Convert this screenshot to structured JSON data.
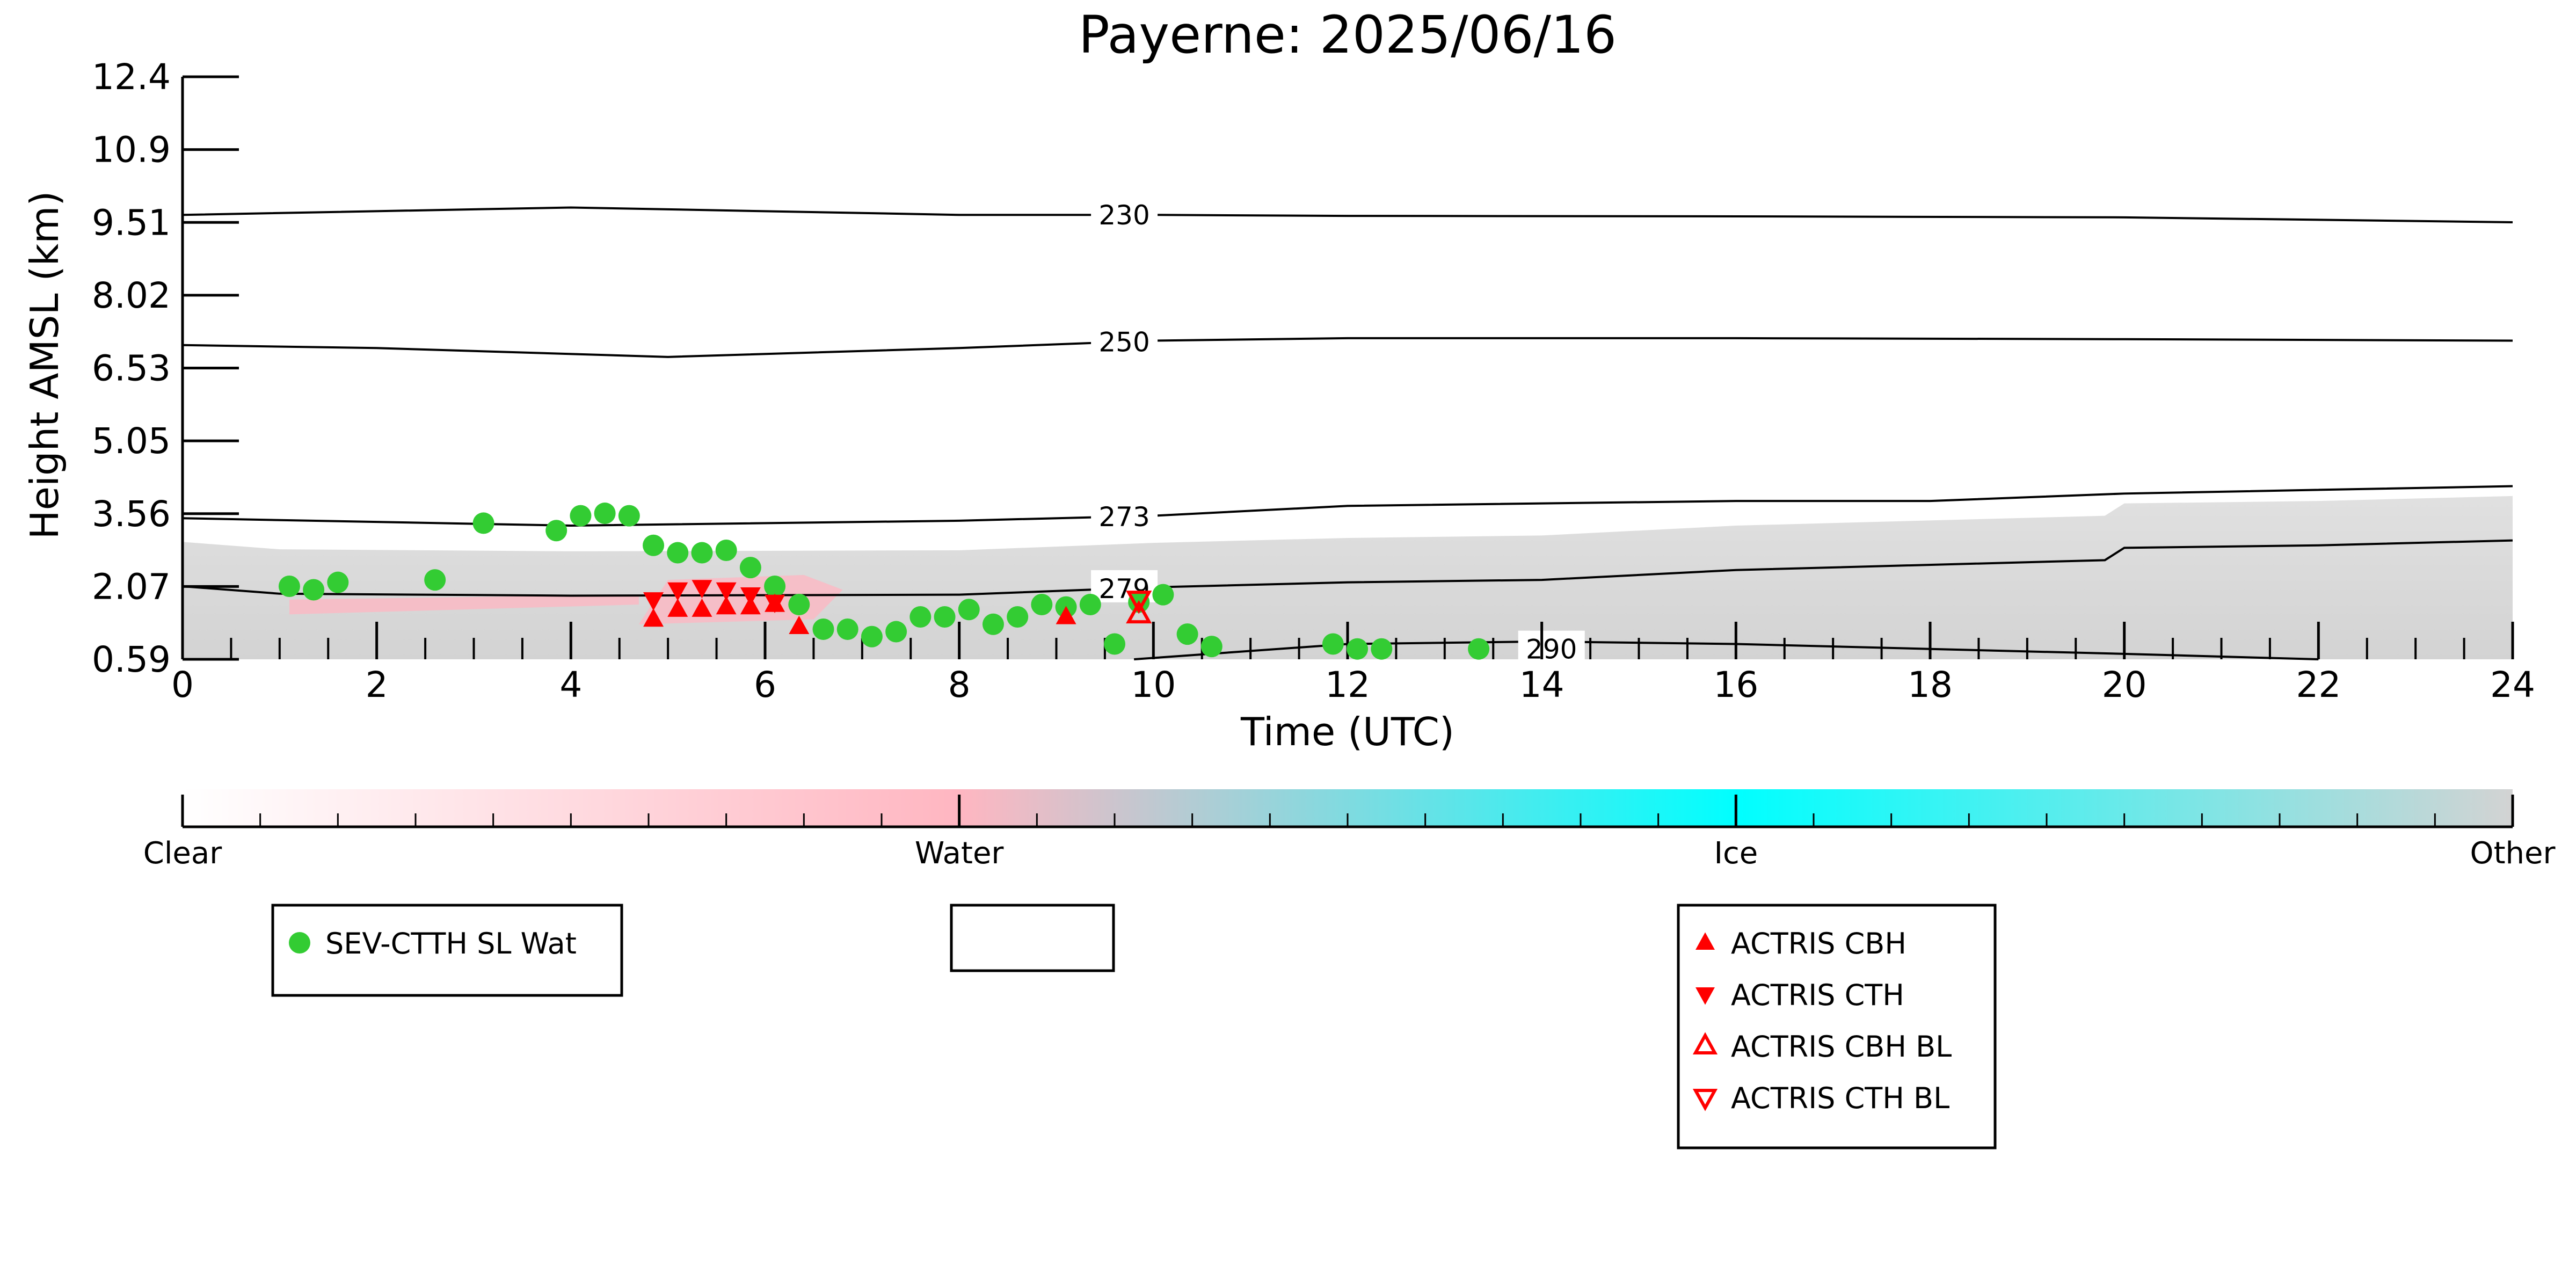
{
  "chart_data": {
    "type": "scatter",
    "title": "Payerne: 2025/06/16",
    "xlabel": "Time (UTC)",
    "ylabel": "Height AMSL (km)",
    "xlim": [
      0,
      24
    ],
    "ylim": [
      0.59,
      12.4
    ],
    "x_ticks": [
      "0",
      "2",
      "4",
      "6",
      "8",
      "10",
      "12",
      "14",
      "16",
      "18",
      "20",
      "22",
      "24"
    ],
    "y_ticks": [
      "0.59",
      "2.07",
      "3.56",
      "5.05",
      "6.53",
      "8.02",
      "9.51",
      "10.9",
      "12.4"
    ],
    "background": "cloud phase mask (Clear / Water / Ice / Other)",
    "colorbar": {
      "labels": [
        "Clear",
        "Water",
        "Ice",
        "Other"
      ],
      "colors": [
        "#ffffff",
        "#ffb6c1",
        "#00ffff",
        "#d3d3d3"
      ]
    },
    "isotherms": [
      {
        "label": "230",
        "x": [
          0,
          4,
          8,
          10,
          12,
          16,
          20,
          24
        ],
        "y": [
          9.6,
          9.75,
          9.6,
          9.6,
          9.58,
          9.57,
          9.55,
          9.45
        ]
      },
      {
        "label": "250",
        "x": [
          0,
          2,
          5,
          8,
          10,
          12,
          16,
          20,
          24
        ],
        "y": [
          6.96,
          6.9,
          6.72,
          6.9,
          7.05,
          7.1,
          7.1,
          7.08,
          7.05
        ]
      },
      {
        "label": "273",
        "x": [
          0,
          4,
          8,
          10,
          12,
          16,
          18,
          20,
          24
        ],
        "y": [
          3.45,
          3.3,
          3.4,
          3.5,
          3.7,
          3.8,
          3.8,
          3.95,
          4.1
        ]
      },
      {
        "label": "279",
        "x": [
          0,
          1,
          4,
          8,
          10,
          12,
          14,
          16,
          19.8,
          20,
          22,
          24
        ],
        "y": [
          2.07,
          1.92,
          1.88,
          1.9,
          2.05,
          2.15,
          2.2,
          2.4,
          2.6,
          2.85,
          2.9,
          3.0
        ]
      },
      {
        "label": "290",
        "x": [
          9.8,
          12,
          14,
          16,
          18,
          20,
          22
        ],
        "y": [
          0.59,
          0.9,
          0.95,
          0.9,
          0.8,
          0.7,
          0.59
        ]
      }
    ],
    "series": [
      {
        "name": "SEV-CTTH SL Wat",
        "color": "#33cc33",
        "marker": "circle",
        "points": [
          [
            1.1,
            2.07
          ],
          [
            1.35,
            2.0
          ],
          [
            1.6,
            2.15
          ],
          [
            2.6,
            2.2
          ],
          [
            3.1,
            3.35
          ],
          [
            3.85,
            3.2
          ],
          [
            4.1,
            3.5
          ],
          [
            4.35,
            3.55
          ],
          [
            4.6,
            3.5
          ],
          [
            4.85,
            2.9
          ],
          [
            5.1,
            2.75
          ],
          [
            5.35,
            2.75
          ],
          [
            5.6,
            2.8
          ],
          [
            5.85,
            2.45
          ],
          [
            6.1,
            2.07
          ],
          [
            6.35,
            1.7
          ],
          [
            6.6,
            1.2
          ],
          [
            6.85,
            1.2
          ],
          [
            7.1,
            1.05
          ],
          [
            7.35,
            1.15
          ],
          [
            7.6,
            1.45
          ],
          [
            7.85,
            1.45
          ],
          [
            8.1,
            1.6
          ],
          [
            8.35,
            1.3
          ],
          [
            8.6,
            1.45
          ],
          [
            8.85,
            1.7
          ],
          [
            9.1,
            1.65
          ],
          [
            9.35,
            1.7
          ],
          [
            9.6,
            0.9
          ],
          [
            9.85,
            1.75
          ],
          [
            10.1,
            1.9
          ],
          [
            10.35,
            1.1
          ],
          [
            10.6,
            0.85
          ],
          [
            11.85,
            0.9
          ],
          [
            12.1,
            0.8
          ],
          [
            12.35,
            0.8
          ],
          [
            13.35,
            0.8
          ]
        ]
      },
      {
        "name": "ACTRIS CBH",
        "color": "#ff0000",
        "marker": "triangle-up",
        "points": [
          [
            4.85,
            1.4
          ],
          [
            5.1,
            1.6
          ],
          [
            5.35,
            1.6
          ],
          [
            5.6,
            1.65
          ],
          [
            5.85,
            1.65
          ],
          [
            6.1,
            1.7
          ],
          [
            6.35,
            1.25
          ],
          [
            9.1,
            1.45
          ]
        ]
      },
      {
        "name": "ACTRIS CTH",
        "color": "#ff0000",
        "marker": "triangle-down",
        "points": [
          [
            4.85,
            1.8
          ],
          [
            5.1,
            2.0
          ],
          [
            5.35,
            2.05
          ],
          [
            5.6,
            2.0
          ],
          [
            5.85,
            1.9
          ],
          [
            6.1,
            1.75
          ]
        ]
      },
      {
        "name": "ACTRIS CBH BL",
        "color": "#ff0000",
        "marker": "triangle-up-open",
        "points": [
          [
            9.85,
            1.5
          ]
        ]
      },
      {
        "name": "ACTRIS CTH BL",
        "color": "#ff0000",
        "marker": "triangle-down-open",
        "points": [
          [
            9.85,
            1.8
          ]
        ]
      }
    ],
    "legends": [
      {
        "entries": [
          "SEV-CTTH SL Wat"
        ],
        "placement": "below-left"
      },
      {
        "entries": [],
        "placement": "below-center"
      },
      {
        "entries": [
          "ACTRIS CBH",
          "ACTRIS CTH",
          "ACTRIS CBH BL",
          "ACTRIS CTH BL"
        ],
        "placement": "below-right"
      }
    ]
  }
}
